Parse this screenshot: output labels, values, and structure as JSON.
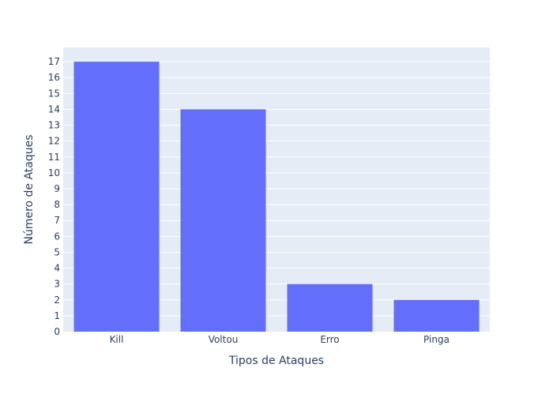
{
  "chart_data": {
    "type": "bar",
    "categories": [
      "Kill",
      "Voltou",
      "Erro",
      "Pinga"
    ],
    "values": [
      17,
      14,
      3,
      2
    ],
    "xlabel": "Tipos de Ataques",
    "ylabel": "Número de Ataques",
    "ylim": [
      0,
      17.9
    ],
    "yticks": [
      0,
      1,
      2,
      3,
      4,
      5,
      6,
      7,
      8,
      9,
      10,
      11,
      12,
      13,
      14,
      15,
      16,
      17
    ],
    "grid": true,
    "colors": {
      "bar": "#636efa",
      "plot_background": "#e5ecf6",
      "gridline": "#ffffff",
      "text": "#2a3f5f"
    }
  }
}
